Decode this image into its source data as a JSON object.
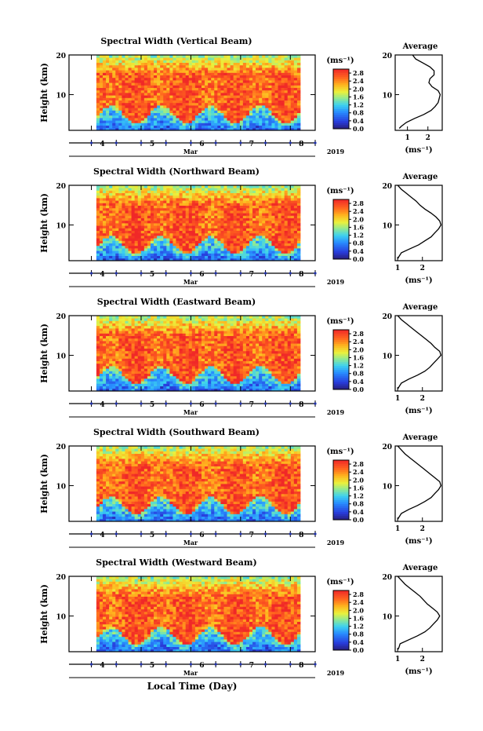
{
  "figure": {
    "xlabel": "Local Time (Day)",
    "month_label": "Mar",
    "year_label": "2019",
    "colorbar_unit": "(ms⁻¹)",
    "avg_title": "Average",
    "avg_xlabel": "(ms⁻¹)"
  },
  "chart_data": [
    {
      "type": "heatmap",
      "title": "Spectral Width (Vertical Beam)",
      "ylabel": "Height (km)",
      "x_ticks": [
        4,
        5,
        6,
        7,
        8
      ],
      "y_ticks": [
        10,
        20
      ],
      "ylim": [
        1,
        20
      ],
      "data_range_days": [
        4.1,
        8.2
      ],
      "colorbar": {
        "ticks": [
          "0.0",
          "0.4",
          "0.8",
          "1.2",
          "1.6",
          "2.0",
          "2.4",
          "2.8"
        ],
        "range": [
          0.0,
          3.0
        ]
      },
      "average_profile": {
        "x_ticks": [
          "1",
          "2"
        ],
        "xlim": [
          0.4,
          2.7
        ],
        "values": [
          {
            "h": 1.5,
            "v": 0.6
          },
          {
            "h": 2,
            "v": 0.7
          },
          {
            "h": 3,
            "v": 0.95
          },
          {
            "h": 4,
            "v": 1.35
          },
          {
            "h": 5,
            "v": 1.8
          },
          {
            "h": 6,
            "v": 2.15
          },
          {
            "h": 7,
            "v": 2.35
          },
          {
            "h": 8,
            "v": 2.5
          },
          {
            "h": 9,
            "v": 2.55
          },
          {
            "h": 10,
            "v": 2.6
          },
          {
            "h": 11,
            "v": 2.5
          },
          {
            "h": 12,
            "v": 2.2
          },
          {
            "h": 13,
            "v": 2.05
          },
          {
            "h": 14,
            "v": 2.1
          },
          {
            "h": 15,
            "v": 2.3
          },
          {
            "h": 16,
            "v": 2.3
          },
          {
            "h": 17,
            "v": 2.1
          },
          {
            "h": 18,
            "v": 1.75
          },
          {
            "h": 19,
            "v": 1.4
          },
          {
            "h": 20,
            "v": 1.25
          }
        ]
      }
    },
    {
      "type": "heatmap",
      "title": "Spectral Width (Northward Beam)",
      "ylabel": "Height (km)",
      "x_ticks": [
        4,
        5,
        6,
        7,
        8
      ],
      "y_ticks": [
        10,
        20
      ],
      "ylim": [
        1,
        20
      ],
      "data_range_days": [
        4.1,
        8.2
      ],
      "colorbar": {
        "ticks": [
          "0.0",
          "0.4",
          "0.8",
          "1.2",
          "1.6",
          "2.0",
          "2.4",
          "2.8"
        ],
        "range": [
          0.0,
          3.0
        ]
      },
      "average_profile": {
        "x_ticks": [
          "1",
          "2"
        ],
        "xlim": [
          0.9,
          2.8
        ],
        "values": [
          {
            "h": 1.5,
            "v": 1.0
          },
          {
            "h": 2,
            "v": 1.05
          },
          {
            "h": 3,
            "v": 1.15
          },
          {
            "h": 4,
            "v": 1.5
          },
          {
            "h": 5,
            "v": 1.85
          },
          {
            "h": 6,
            "v": 2.1
          },
          {
            "h": 7,
            "v": 2.35
          },
          {
            "h": 8,
            "v": 2.5
          },
          {
            "h": 9,
            "v": 2.65
          },
          {
            "h": 10,
            "v": 2.75
          },
          {
            "h": 11,
            "v": 2.7
          },
          {
            "h": 12,
            "v": 2.55
          },
          {
            "h": 13,
            "v": 2.35
          },
          {
            "h": 14,
            "v": 2.1
          },
          {
            "h": 15,
            "v": 1.9
          },
          {
            "h": 16,
            "v": 1.75
          },
          {
            "h": 17,
            "v": 1.55
          },
          {
            "h": 18,
            "v": 1.35
          },
          {
            "h": 19,
            "v": 1.15
          },
          {
            "h": 20,
            "v": 1.0
          }
        ]
      }
    },
    {
      "type": "heatmap",
      "title": "Spectral Width (Eastward Beam)",
      "ylabel": "Height (km)",
      "x_ticks": [
        4,
        5,
        6,
        7,
        8
      ],
      "y_ticks": [
        10,
        20
      ],
      "ylim": [
        1,
        20
      ],
      "data_range_days": [
        4.1,
        8.2
      ],
      "colorbar": {
        "ticks": [
          "0.0",
          "0.4",
          "0.8",
          "1.2",
          "1.6",
          "2.0",
          "2.4",
          "2.8"
        ],
        "range": [
          0.0,
          3.0
        ]
      },
      "average_profile": {
        "x_ticks": [
          "1",
          "2"
        ],
        "xlim": [
          0.9,
          2.8
        ],
        "values": [
          {
            "h": 1.5,
            "v": 1.0
          },
          {
            "h": 2,
            "v": 1.05
          },
          {
            "h": 3,
            "v": 1.15
          },
          {
            "h": 4,
            "v": 1.45
          },
          {
            "h": 5,
            "v": 1.8
          },
          {
            "h": 6,
            "v": 2.1
          },
          {
            "h": 7,
            "v": 2.3
          },
          {
            "h": 8,
            "v": 2.45
          },
          {
            "h": 9,
            "v": 2.6
          },
          {
            "h": 10,
            "v": 2.75
          },
          {
            "h": 11,
            "v": 2.7
          },
          {
            "h": 12,
            "v": 2.5
          },
          {
            "h": 13,
            "v": 2.35
          },
          {
            "h": 14,
            "v": 2.15
          },
          {
            "h": 15,
            "v": 1.95
          },
          {
            "h": 16,
            "v": 1.75
          },
          {
            "h": 17,
            "v": 1.55
          },
          {
            "h": 18,
            "v": 1.35
          },
          {
            "h": 19,
            "v": 1.15
          },
          {
            "h": 20,
            "v": 1.0
          }
        ]
      }
    },
    {
      "type": "heatmap",
      "title": "Spectral Width (Southward Beam)",
      "ylabel": "Height (km)",
      "x_ticks": [
        4,
        5,
        6,
        7,
        8
      ],
      "y_ticks": [
        10,
        20
      ],
      "ylim": [
        1,
        20
      ],
      "data_range_days": [
        4.1,
        8.2
      ],
      "colorbar": {
        "ticks": [
          "0.0",
          "0.4",
          "0.8",
          "1.2",
          "1.6",
          "2.0",
          "2.4",
          "2.8"
        ],
        "range": [
          0.0,
          3.0
        ]
      },
      "average_profile": {
        "x_ticks": [
          "1",
          "2"
        ],
        "xlim": [
          0.9,
          2.8
        ],
        "values": [
          {
            "h": 1.5,
            "v": 1.0
          },
          {
            "h": 2,
            "v": 1.05
          },
          {
            "h": 3,
            "v": 1.15
          },
          {
            "h": 4,
            "v": 1.45
          },
          {
            "h": 5,
            "v": 1.8
          },
          {
            "h": 6,
            "v": 2.1
          },
          {
            "h": 7,
            "v": 2.35
          },
          {
            "h": 8,
            "v": 2.5
          },
          {
            "h": 9,
            "v": 2.65
          },
          {
            "h": 10,
            "v": 2.75
          },
          {
            "h": 11,
            "v": 2.7
          },
          {
            "h": 12,
            "v": 2.5
          },
          {
            "h": 13,
            "v": 2.3
          },
          {
            "h": 14,
            "v": 2.1
          },
          {
            "h": 15,
            "v": 1.9
          },
          {
            "h": 16,
            "v": 1.7
          },
          {
            "h": 17,
            "v": 1.5
          },
          {
            "h": 18,
            "v": 1.3
          },
          {
            "h": 19,
            "v": 1.15
          },
          {
            "h": 20,
            "v": 1.0
          }
        ]
      }
    },
    {
      "type": "heatmap",
      "title": "Spectral Width (Westward Beam)",
      "ylabel": "Height (km)",
      "x_ticks": [
        4,
        5,
        6,
        7,
        8
      ],
      "y_ticks": [
        10,
        20
      ],
      "ylim": [
        1,
        20
      ],
      "data_range_days": [
        4.1,
        8.2
      ],
      "colorbar": {
        "ticks": [
          "0.0",
          "0.4",
          "0.8",
          "1.2",
          "1.6",
          "2.0",
          "2.4",
          "2.8"
        ],
        "range": [
          0.0,
          3.0
        ]
      },
      "average_profile": {
        "x_ticks": [
          "1",
          "2"
        ],
        "xlim": [
          0.9,
          2.8
        ],
        "values": [
          {
            "h": 1.5,
            "v": 1.0
          },
          {
            "h": 2,
            "v": 1.05
          },
          {
            "h": 3,
            "v": 1.1
          },
          {
            "h": 4,
            "v": 1.45
          },
          {
            "h": 5,
            "v": 1.8
          },
          {
            "h": 6,
            "v": 2.1
          },
          {
            "h": 7,
            "v": 2.3
          },
          {
            "h": 8,
            "v": 2.45
          },
          {
            "h": 9,
            "v": 2.6
          },
          {
            "h": 10,
            "v": 2.7
          },
          {
            "h": 11,
            "v": 2.6
          },
          {
            "h": 12,
            "v": 2.4
          },
          {
            "h": 13,
            "v": 2.2
          },
          {
            "h": 14,
            "v": 2.05
          },
          {
            "h": 15,
            "v": 1.9
          },
          {
            "h": 16,
            "v": 1.7
          },
          {
            "h": 17,
            "v": 1.5
          },
          {
            "h": 18,
            "v": 1.3
          },
          {
            "h": 19,
            "v": 1.15
          },
          {
            "h": 20,
            "v": 1.0
          }
        ]
      }
    }
  ]
}
